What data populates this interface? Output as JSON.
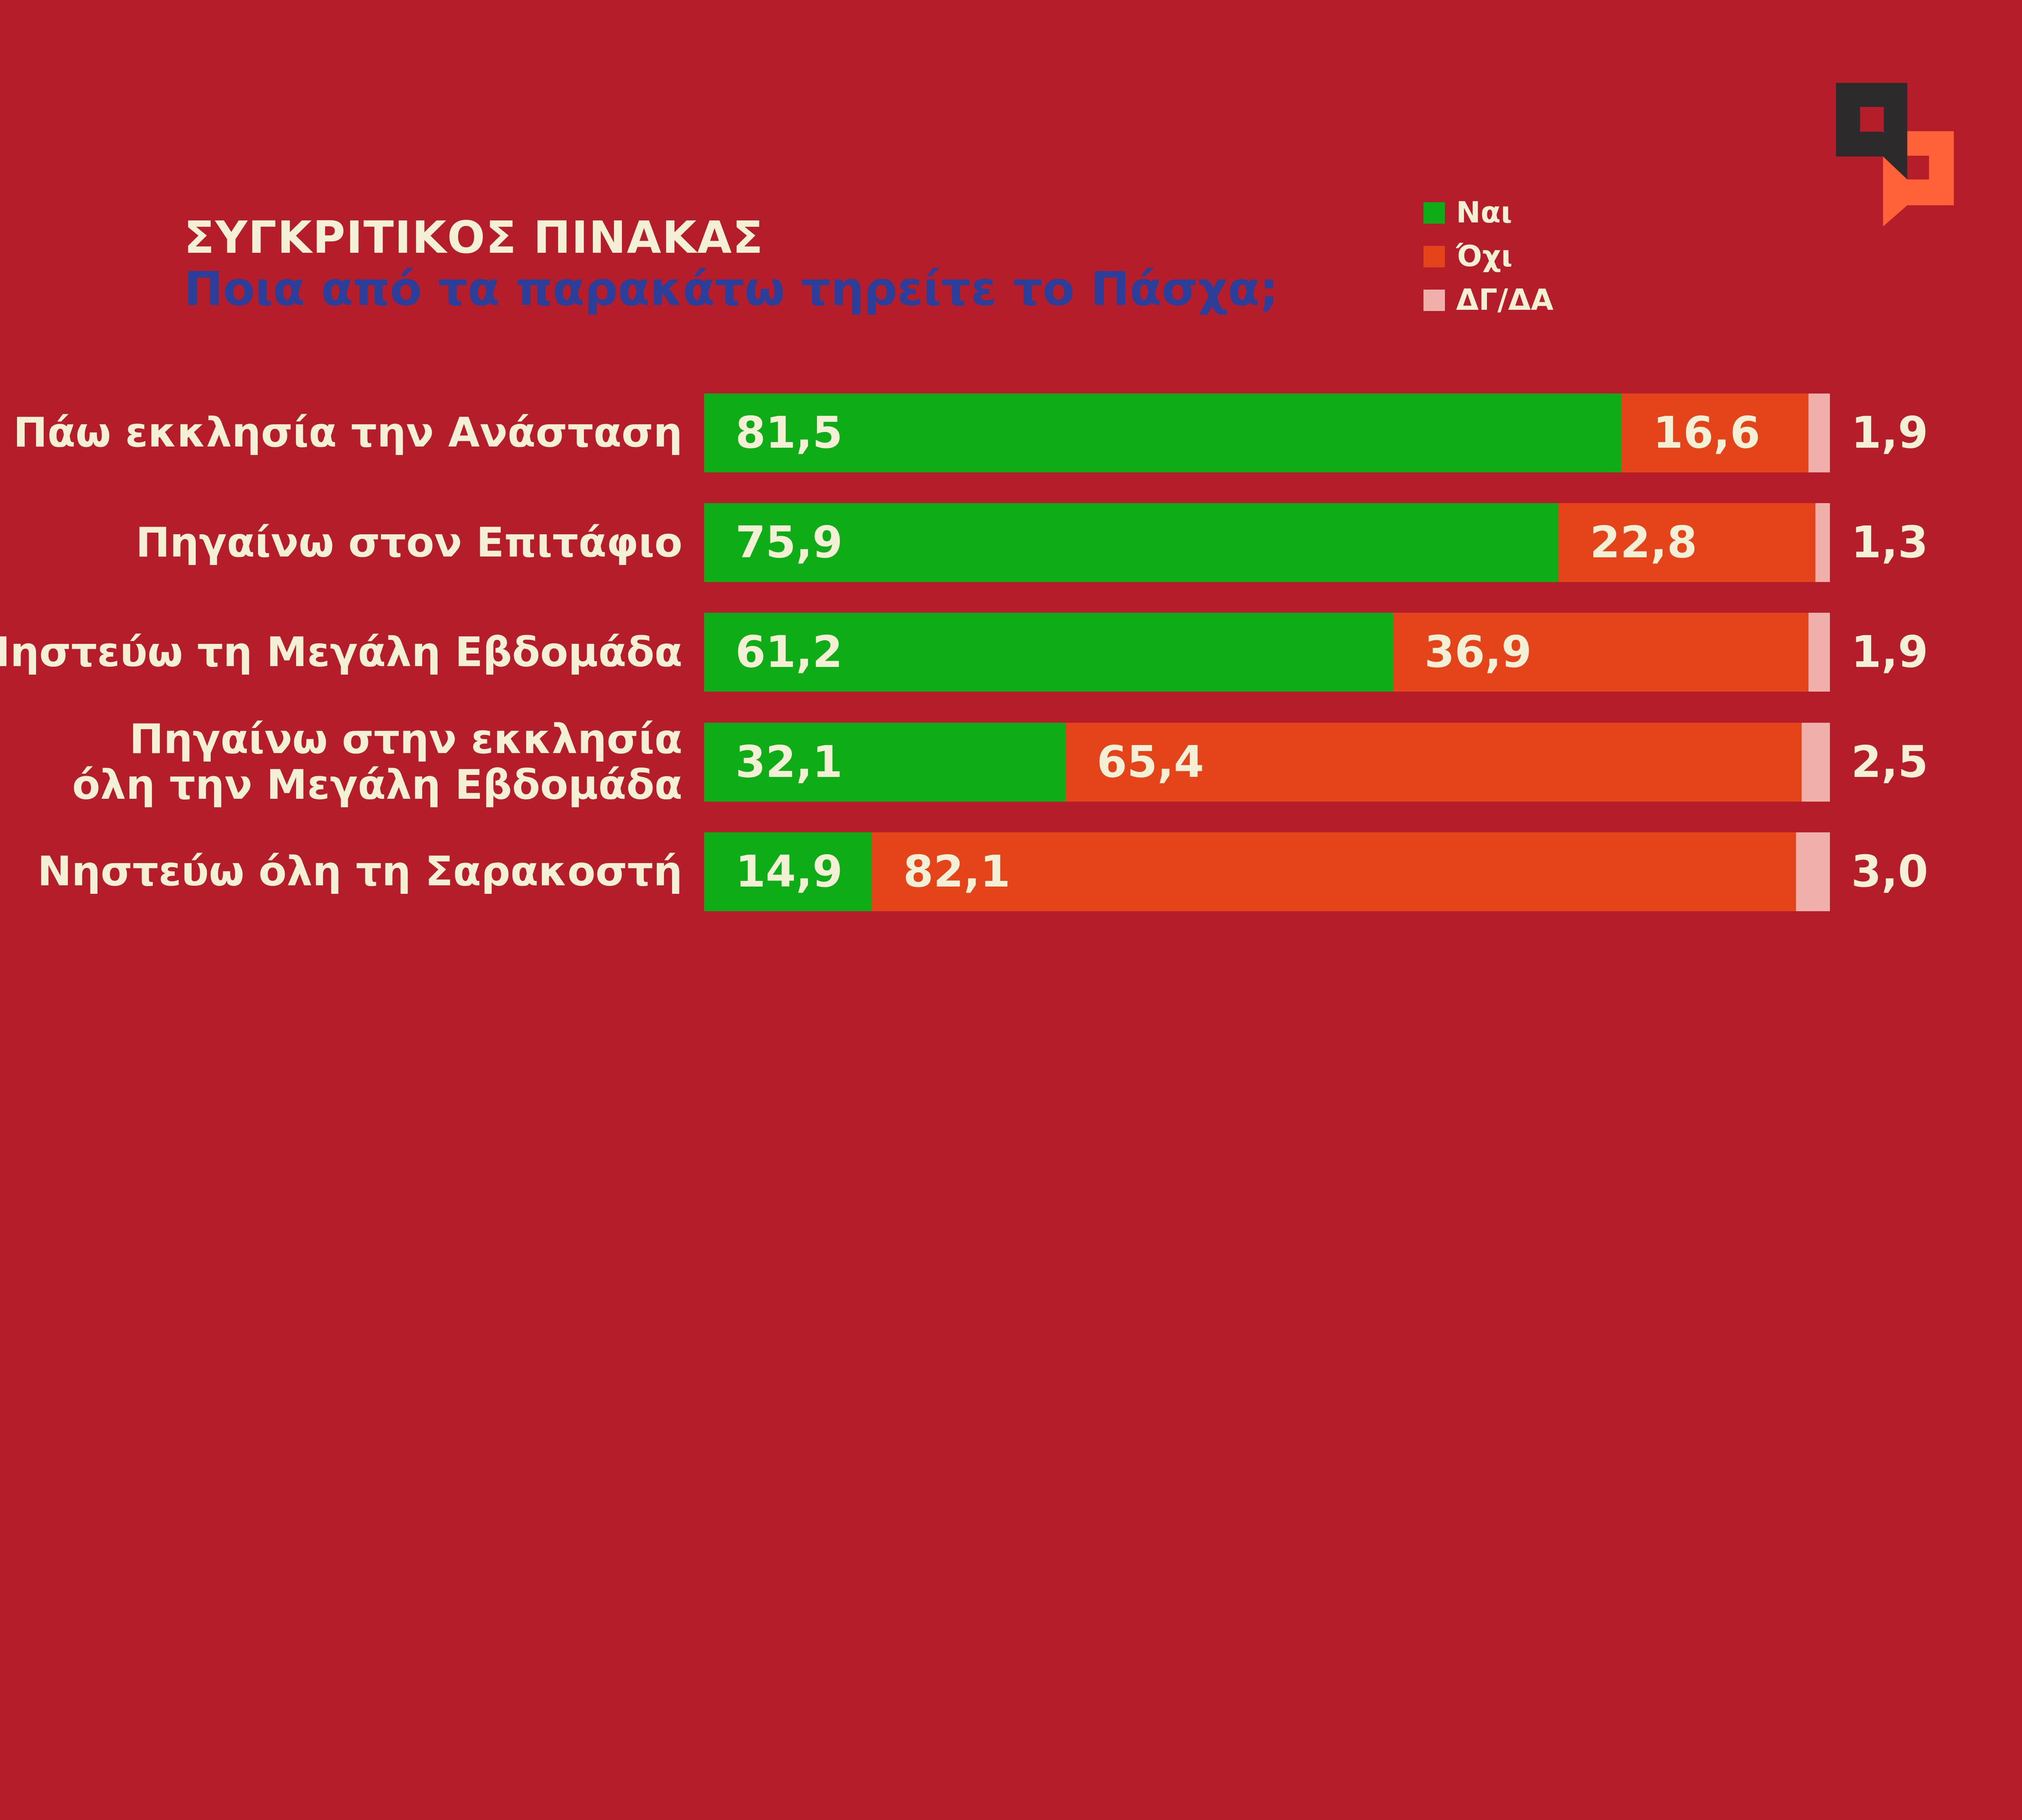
{
  "colors": {
    "background": "#B41D29",
    "yes_green": "#0EAC17",
    "no_orange": "#E5431A",
    "dk_pink": "#F1AFAA",
    "text_cream": "#F4F0D5",
    "subtitle_blue": "#2B3E99",
    "logo_dark": "#2D2A2B",
    "logo_orange": "#FF6239"
  },
  "header": {
    "title": "ΣΥΓΚΡΙΤΙΚΟΣ ΠΙΝΑΚΑΣ",
    "subtitle": "Ποια από τα παρακάτω τηρείτε το Πάσχα;"
  },
  "legend": {
    "yes": "Ναι",
    "no": "Όχι",
    "dk": "ΔΓ/ΔΑ"
  },
  "rows": [
    {
      "label": "Πάω εκκλησία την Ανάσταση",
      "label2": "",
      "yes": "81,5",
      "no": "16,6",
      "dk": "1,9",
      "yes_pct": 81.5,
      "no_pct": 16.6,
      "dk_pct": 1.9
    },
    {
      "label": "Πηγαίνω στον Επιτάφιο",
      "label2": "",
      "yes": "75,9",
      "no": "22,8",
      "dk": "1,3",
      "yes_pct": 75.9,
      "no_pct": 22.8,
      "dk_pct": 1.3
    },
    {
      "label": "Νηστεύω τη Μεγάλη Εβδομάδα",
      "label2": "",
      "yes": "61,2",
      "no": "36,9",
      "dk": "1,9",
      "yes_pct": 61.2,
      "no_pct": 36.9,
      "dk_pct": 1.9
    },
    {
      "label": "Πηγαίνω στην εκκλησία",
      "label2": "όλη την Μεγάλη Εβδομάδα",
      "yes": "32,1",
      "no": "65,4",
      "dk": "2,5",
      "yes_pct": 32.1,
      "no_pct": 65.4,
      "dk_pct": 2.5
    },
    {
      "label": "Νηστεύω όλη τη Σαρακοστή",
      "label2": "",
      "yes": "14,9",
      "no": "82,1",
      "dk": "3,0",
      "yes_pct": 14.9,
      "no_pct": 82.1,
      "dk_pct": 3.0
    }
  ],
  "chart_data": {
    "type": "bar",
    "orientation": "horizontal",
    "stacked": true,
    "unit": "percent",
    "title": "ΣΥΓΚΡΙΤΙΚΟΣ ΠΙΝΑΚΑΣ",
    "subtitle": "Ποια από τα παρακάτω τηρείτε το Πάσχα;",
    "categories": [
      "Πάω εκκλησία την Ανάσταση",
      "Πηγαίνω στον Επιτάφιο",
      "Νηστεύω τη Μεγάλη Εβδομάδα",
      "Πηγαίνω στην εκκλησία όλη την Μεγάλη Εβδομάδα",
      "Νηστεύω όλη τη Σαρακοστή"
    ],
    "series": [
      {
        "name": "Ναι",
        "color": "#0EAC17",
        "values": [
          81.5,
          75.9,
          61.2,
          32.1,
          14.9
        ]
      },
      {
        "name": "Όχι",
        "color": "#E5431A",
        "values": [
          16.6,
          22.8,
          36.9,
          65.4,
          82.1
        ]
      },
      {
        "name": "ΔΓ/ΔΑ",
        "color": "#F1AFAA",
        "values": [
          1.9,
          1.3,
          1.9,
          2.5,
          3.0
        ]
      }
    ],
    "xlim": [
      0,
      100
    ],
    "legend_position": "top-right",
    "value_label_style": "Ναι and Όχι labels inside segment start, ΔΓ/ΔΑ label outside right of bar"
  }
}
